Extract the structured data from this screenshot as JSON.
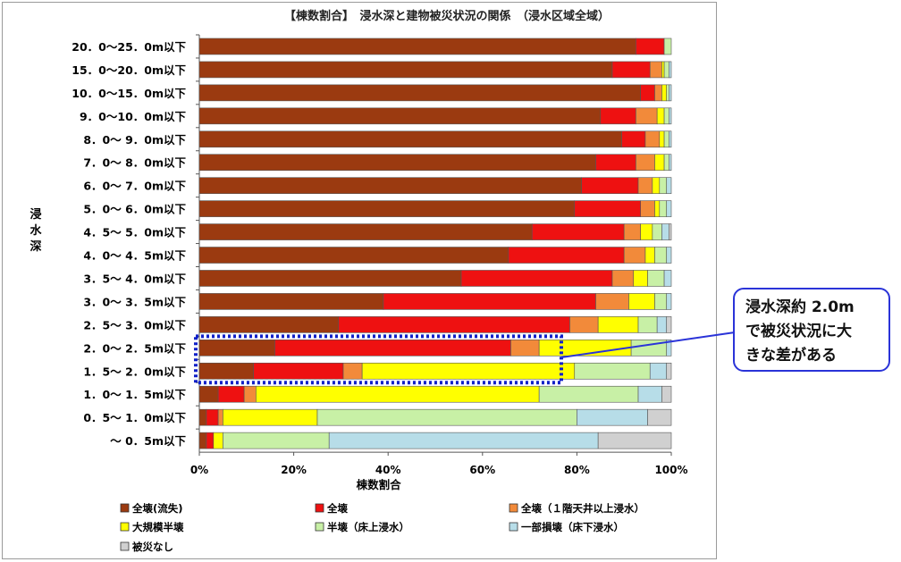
{
  "chart_data": {
    "type": "bar",
    "orientation": "horizontal",
    "stacked": true,
    "percent": true,
    "title": "【棟数割合】　浸水深と建物被災状況の関係　（浸水区域全域）",
    "xlabel": "棟数割合",
    "ylabel": "浸水深",
    "xlim": [
      0,
      100
    ],
    "x_ticks": [
      "0%",
      "20%",
      "40%",
      "60%",
      "80%",
      "100%"
    ],
    "grid": false,
    "legend_position": "bottom",
    "categories": [
      "20．0～25．0m以下",
      "15．0～20．0m以下",
      "10．0～15．0m以下",
      "9．0～10．0m以下",
      "8．0～ 9．0m以下",
      "7．0～ 8．0m以下",
      "6．0～ 7．0m以下",
      "5．0～ 6．0m以下",
      "4．5～ 5．0m以下",
      "4．0～ 4．5m以下",
      "3．5～ 4．0m以下",
      "3．0～ 3．5m以下",
      "2．5～ 3．0m以下",
      "2．0～ 2．5m以下",
      "1．5～ 2．0m以下",
      "1．0～ 1．5m以下",
      "0．5～ 1．0m以下",
      "～ 0．5m以下"
    ],
    "series": [
      {
        "name": "全壊(流失)",
        "color": "#9b3a10",
        "values": [
          92.5,
          87.5,
          93.5,
          85,
          89.5,
          84,
          81,
          79.5,
          70.5,
          65.5,
          55.5,
          39,
          29.5,
          16,
          11.5,
          4,
          1.5,
          1.5
        ]
      },
      {
        "name": "全壊",
        "color": "#ee1111",
        "values": [
          6,
          8,
          3,
          7.5,
          5,
          8.5,
          12,
          14,
          19.5,
          24.5,
          32,
          45,
          49,
          50,
          19,
          5.5,
          2.5,
          1.5
        ]
      },
      {
        "name": "全壊（１階天井以上浸水）",
        "color": "#f28a3a",
        "values": [
          0,
          2.5,
          1.5,
          4.5,
          3,
          4,
          3,
          3,
          3.5,
          4.5,
          4.5,
          7,
          6,
          6,
          4,
          2.5,
          1,
          0
        ]
      },
      {
        "name": "大規模半壊",
        "color": "#ffff00",
        "values": [
          0,
          0.5,
          1,
          1.5,
          1,
          2,
          1.5,
          1,
          2.5,
          2,
          3,
          5.5,
          8.5,
          19.5,
          45,
          60,
          20,
          2
        ]
      },
      {
        "name": "半壊（床上浸水）",
        "color": "#c8f0a6",
        "values": [
          1.5,
          1,
          0.5,
          1,
          1,
          1,
          1.5,
          1.5,
          2,
          2.5,
          3.5,
          2.5,
          4,
          7.5,
          16,
          21,
          55,
          22.5
        ]
      },
      {
        "name": "一部損壊（床下浸水）",
        "color": "#b7dde8",
        "values": [
          0,
          0.5,
          0.5,
          0.5,
          0.5,
          0.5,
          1,
          1,
          1.5,
          1,
          1.5,
          1,
          2,
          1,
          3.5,
          5,
          15,
          57
        ]
      },
      {
        "name": "被災なし",
        "color": "#d0d0d0",
        "values": [
          0,
          0,
          0,
          0,
          0,
          0,
          0,
          0,
          0.5,
          0,
          0,
          0,
          1,
          0,
          1,
          2,
          5,
          15.5
        ]
      }
    ],
    "highlight": {
      "categories": [
        "2．0～ 2．5m以下",
        "1．5～ 2．0m以下"
      ],
      "color": "#1020c8",
      "style": "dotted"
    }
  },
  "callout": {
    "lines": [
      "浸水深約 2.0m",
      "で被災状況に大",
      "きな差がある"
    ],
    "border_color": "#2a33d8"
  }
}
